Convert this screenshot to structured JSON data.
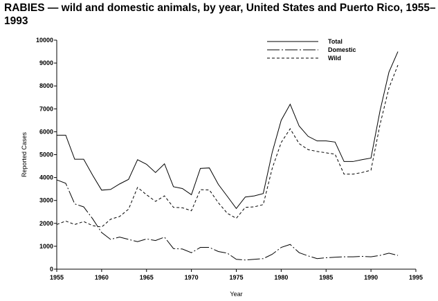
{
  "chart_data": {
    "type": "line",
    "title": "RABIES — wild and domestic animals, by year, United States and Puerto Rico, 1955–1993",
    "xlabel": "Year",
    "ylabel": "Reported Cases",
    "xlim": [
      1955,
      1995
    ],
    "ylim": [
      0,
      10000
    ],
    "xticks": [
      1955,
      1960,
      1965,
      1970,
      1975,
      1980,
      1985,
      1990,
      1995
    ],
    "yticks": [
      0,
      1000,
      2000,
      3000,
      4000,
      5000,
      6000,
      7000,
      8000,
      9000,
      10000
    ],
    "grid": false,
    "legend_position": "top-right",
    "x": [
      1955,
      1956,
      1957,
      1958,
      1959,
      1960,
      1961,
      1962,
      1963,
      1964,
      1965,
      1966,
      1967,
      1968,
      1969,
      1970,
      1971,
      1972,
      1973,
      1974,
      1975,
      1976,
      1977,
      1978,
      1979,
      1980,
      1981,
      1982,
      1983,
      1984,
      1985,
      1986,
      1987,
      1988,
      1989,
      1990,
      1991,
      1992,
      1993
    ],
    "series": [
      {
        "name": "Total",
        "dash": "solid",
        "values": [
          5850,
          5850,
          4800,
          4800,
          4100,
          3450,
          3480,
          3720,
          3920,
          4780,
          4580,
          4220,
          4600,
          3600,
          3520,
          3250,
          4400,
          4420,
          3700,
          3180,
          2650,
          3150,
          3200,
          3300,
          5100,
          6500,
          7200,
          6250,
          5800,
          5600,
          5600,
          5550,
          4700,
          4700,
          4780,
          4850,
          6900,
          8600,
          9500
        ]
      },
      {
        "name": "Domestic",
        "dash": "long-short",
        "values": [
          3900,
          3750,
          2850,
          2720,
          2200,
          1600,
          1300,
          1400,
          1300,
          1200,
          1320,
          1250,
          1400,
          900,
          880,
          720,
          950,
          950,
          770,
          700,
          430,
          400,
          430,
          460,
          650,
          950,
          1080,
          720,
          580,
          460,
          500,
          520,
          540,
          540,
          560,
          540,
          600,
          700,
          600
        ]
      },
      {
        "name": "Wild",
        "dash": "dashed",
        "values": [
          1950,
          2100,
          1950,
          2080,
          1900,
          1840,
          2180,
          2300,
          2620,
          3570,
          3250,
          2960,
          3200,
          2700,
          2680,
          2550,
          3470,
          3460,
          2900,
          2440,
          2220,
          2700,
          2720,
          2820,
          4400,
          5530,
          6130,
          5480,
          5220,
          5140,
          5080,
          5020,
          4150,
          4150,
          4220,
          4320,
          6300,
          7910,
          8910
        ]
      }
    ]
  }
}
